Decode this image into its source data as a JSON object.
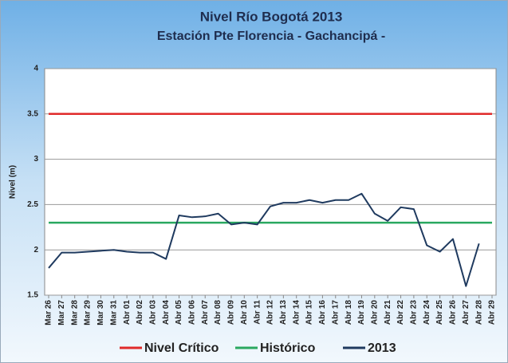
{
  "chart_data": {
    "type": "line",
    "title": "Nivel Río Bogotá 2013",
    "subtitle": "Estación Pte Florencia - Gachancipá -",
    "y_label": "Nivel (m)",
    "categories": [
      "Mar 26",
      "Mar 27",
      "Mar 28",
      "Mar 29",
      "Mar 30",
      "Mar 31",
      "Abr 01",
      "Abr 02",
      "Abr 03",
      "Abr 04",
      "Abr 05",
      "Abr 06",
      "Abr 07",
      "Abr 08",
      "Abr 09",
      "Abr 10",
      "Abr 11",
      "Abr 12",
      "Abr 13",
      "Abr 14",
      "Abr 15",
      "Abr 16",
      "Abr 17",
      "Abr 18",
      "Abr 19",
      "Abr 20",
      "Abr 21",
      "Abr 22",
      "Abr 23",
      "Abr 24",
      "Abr 25",
      "Abr 26",
      "Abr 27",
      "Abr 28",
      "Abr 29"
    ],
    "series": [
      {
        "name": "Nivel Crítico",
        "color": "#e02a2a",
        "values": [
          3.5,
          3.5,
          3.5,
          3.5,
          3.5,
          3.5,
          3.5,
          3.5,
          3.5,
          3.5,
          3.5,
          3.5,
          3.5,
          3.5,
          3.5,
          3.5,
          3.5,
          3.5,
          3.5,
          3.5,
          3.5,
          3.5,
          3.5,
          3.5,
          3.5,
          3.5,
          3.5,
          3.5,
          3.5,
          3.5,
          3.5,
          3.5,
          3.5,
          3.5,
          3.5
        ]
      },
      {
        "name": "Histórico",
        "color": "#2aa860",
        "values": [
          2.3,
          2.3,
          2.3,
          2.3,
          2.3,
          2.3,
          2.3,
          2.3,
          2.3,
          2.3,
          2.3,
          2.3,
          2.3,
          2.3,
          2.3,
          2.3,
          2.3,
          2.3,
          2.3,
          2.3,
          2.3,
          2.3,
          2.3,
          2.3,
          2.3,
          2.3,
          2.3,
          2.3,
          2.3,
          2.3,
          2.3,
          2.3,
          2.3,
          2.3,
          2.3
        ]
      },
      {
        "name": "2013",
        "color": "#1f3a5f",
        "values": [
          1.8,
          1.97,
          1.97,
          1.98,
          1.99,
          2.0,
          1.98,
          1.97,
          1.97,
          1.9,
          2.38,
          2.36,
          2.37,
          2.4,
          2.28,
          2.3,
          2.28,
          2.48,
          2.52,
          2.52,
          2.55,
          2.52,
          2.55,
          2.55,
          2.62,
          2.4,
          2.32,
          2.47,
          2.45,
          2.05,
          1.98,
          2.12,
          1.6,
          2.07,
          null
        ]
      }
    ],
    "ylim": [
      1.5,
      4
    ],
    "yticks": [
      1.5,
      2,
      2.5,
      3,
      3.5,
      4
    ],
    "grid": true,
    "legend": "bottom"
  }
}
